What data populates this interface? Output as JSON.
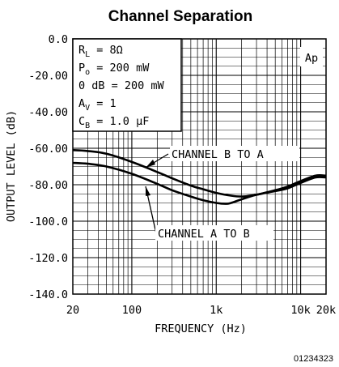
{
  "chart_data": {
    "type": "line",
    "title": "Channel Separation",
    "xlabel": "FREQUENCY (Hz)",
    "ylabel": "OUTPUT LEVEL (dB)",
    "x_scale": "log",
    "xlim": [
      20,
      20000
    ],
    "ylim": [
      -140,
      0
    ],
    "x_ticks": [
      {
        "value": 20,
        "label": "20"
      },
      {
        "value": 100,
        "label": "100"
      },
      {
        "value": 1000,
        "label": "1k"
      },
      {
        "value": 10000,
        "label": "10k"
      },
      {
        "value": 20000,
        "label": "20k"
      }
    ],
    "y_ticks": [
      {
        "value": 0,
        "label": "0.0"
      },
      {
        "value": -20,
        "label": "-20.00"
      },
      {
        "value": -40,
        "label": "-40.00"
      },
      {
        "value": -60,
        "label": "-60.00"
      },
      {
        "value": -80,
        "label": "-80.00"
      },
      {
        "value": -100,
        "label": "-100.0"
      },
      {
        "value": -120,
        "label": "-120.0"
      },
      {
        "value": -140,
        "label": "-140.0"
      }
    ],
    "grid": true,
    "conditions": {
      "rl_label": "R",
      "rl_sub": "L",
      "rl_value": " = 8Ω",
      "po_label": "P",
      "po_sub": "o",
      "po_value": " = 200 mW",
      "db_ref": "0 dB = 200 mW",
      "av_label": "A",
      "av_sub": "V",
      "av_value": " = 1",
      "cb_label": "C",
      "cb_sub": "B",
      "cb_value": " = 1.0 μF"
    },
    "corner_label": "Ap",
    "footnote": "01234323",
    "series": [
      {
        "name": "CHANNEL B TO A",
        "x": [
          20,
          30,
          50,
          100,
          200,
          300,
          500,
          700,
          1000,
          1500,
          2000,
          2500,
          3000,
          5000,
          7000,
          10000,
          15000,
          20000
        ],
        "y": [
          -61,
          -61.5,
          -63,
          -67.5,
          -73,
          -76.5,
          -80.5,
          -82.5,
          -84.5,
          -86,
          -86.5,
          -86,
          -85.5,
          -83,
          -81,
          -78,
          -75,
          -75
        ]
      },
      {
        "name": "CHANNEL A TO B",
        "x": [
          20,
          30,
          50,
          100,
          200,
          300,
          500,
          700,
          1000,
          1300,
          1500,
          2000,
          3000,
          5000,
          7000,
          10000,
          15000,
          20000
        ],
        "y": [
          -68,
          -68.5,
          -70,
          -74,
          -79.5,
          -83,
          -86.5,
          -88.5,
          -90,
          -90.5,
          -90,
          -88,
          -85.5,
          -83.5,
          -82,
          -79,
          -76,
          -76
        ]
      }
    ]
  }
}
